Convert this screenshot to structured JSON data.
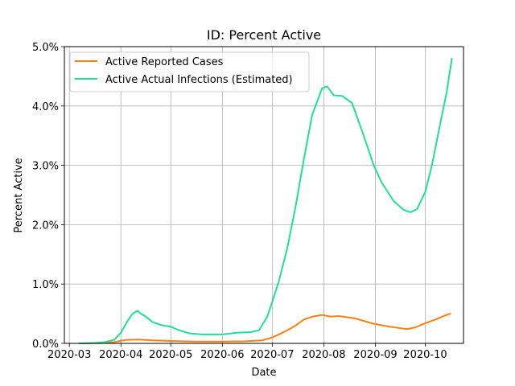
{
  "chart_data": {
    "type": "line",
    "title": "ID: Percent Active",
    "xlabel": "Date",
    "ylabel": "Percent Active",
    "x_ticks": [
      "2020-03",
      "2020-04",
      "2020-05",
      "2020-06",
      "2020-07",
      "2020-08",
      "2020-09",
      "2020-10"
    ],
    "y_ticks": [
      "0.0%",
      "1.0%",
      "2.0%",
      "3.0%",
      "4.0%",
      "5.0%"
    ],
    "xlim": [
      "2020-02-27",
      "2020-10-24"
    ],
    "ylim": [
      0,
      5.0
    ],
    "grid": true,
    "legend_position": "upper-left",
    "series": [
      {
        "name": "Active Reported Cases",
        "color": "#ff7f0e",
        "points": [
          [
            "2020-03-07",
            0.0
          ],
          [
            "2020-03-20",
            0.005
          ],
          [
            "2020-03-28",
            0.02
          ],
          [
            "2020-04-01",
            0.045
          ],
          [
            "2020-04-05",
            0.06
          ],
          [
            "2020-04-12",
            0.065
          ],
          [
            "2020-04-20",
            0.05
          ],
          [
            "2020-05-01",
            0.04
          ],
          [
            "2020-05-15",
            0.03
          ],
          [
            "2020-06-01",
            0.03
          ],
          [
            "2020-06-15",
            0.035
          ],
          [
            "2020-06-25",
            0.05
          ],
          [
            "2020-07-01",
            0.1
          ],
          [
            "2020-07-05",
            0.15
          ],
          [
            "2020-07-10",
            0.22
          ],
          [
            "2020-07-15",
            0.3
          ],
          [
            "2020-07-20",
            0.4
          ],
          [
            "2020-07-25",
            0.45
          ],
          [
            "2020-07-31",
            0.48
          ],
          [
            "2020-08-05",
            0.45
          ],
          [
            "2020-08-10",
            0.46
          ],
          [
            "2020-08-20",
            0.42
          ],
          [
            "2020-08-31",
            0.33
          ],
          [
            "2020-09-10",
            0.28
          ],
          [
            "2020-09-15",
            0.26
          ],
          [
            "2020-09-20",
            0.24
          ],
          [
            "2020-09-25",
            0.27
          ],
          [
            "2020-10-01",
            0.34
          ],
          [
            "2020-10-07",
            0.4
          ],
          [
            "2020-10-12",
            0.46
          ],
          [
            "2020-10-16",
            0.5
          ]
        ]
      },
      {
        "name": "Active Actual Infections (Estimated)",
        "color": "#1fe095",
        "points": [
          [
            "2020-03-07",
            0.0
          ],
          [
            "2020-03-15",
            0.005
          ],
          [
            "2020-03-22",
            0.02
          ],
          [
            "2020-03-28",
            0.06
          ],
          [
            "2020-04-01",
            0.18
          ],
          [
            "2020-04-05",
            0.38
          ],
          [
            "2020-04-08",
            0.5
          ],
          [
            "2020-04-11",
            0.55
          ],
          [
            "2020-04-13",
            0.5
          ],
          [
            "2020-04-16",
            0.45
          ],
          [
            "2020-04-20",
            0.36
          ],
          [
            "2020-04-25",
            0.31
          ],
          [
            "2020-05-01",
            0.28
          ],
          [
            "2020-05-06",
            0.22
          ],
          [
            "2020-05-12",
            0.17
          ],
          [
            "2020-05-20",
            0.15
          ],
          [
            "2020-06-01",
            0.15
          ],
          [
            "2020-06-10",
            0.18
          ],
          [
            "2020-06-18",
            0.19
          ],
          [
            "2020-06-23",
            0.22
          ],
          [
            "2020-06-28",
            0.45
          ],
          [
            "2020-07-01",
            0.7
          ],
          [
            "2020-07-05",
            1.05
          ],
          [
            "2020-07-10",
            1.6
          ],
          [
            "2020-07-15",
            2.3
          ],
          [
            "2020-07-20",
            3.1
          ],
          [
            "2020-07-25",
            3.85
          ],
          [
            "2020-07-31",
            4.3
          ],
          [
            "2020-08-03",
            4.33
          ],
          [
            "2020-08-07",
            4.18
          ],
          [
            "2020-08-12",
            4.17
          ],
          [
            "2020-08-18",
            4.05
          ],
          [
            "2020-08-25",
            3.5
          ],
          [
            "2020-08-31",
            3.0
          ],
          [
            "2020-09-05",
            2.7
          ],
          [
            "2020-09-12",
            2.4
          ],
          [
            "2020-09-18",
            2.25
          ],
          [
            "2020-09-22",
            2.21
          ],
          [
            "2020-09-26",
            2.26
          ],
          [
            "2020-10-01",
            2.55
          ],
          [
            "2020-10-05",
            3.0
          ],
          [
            "2020-10-10",
            3.7
          ],
          [
            "2020-10-14",
            4.25
          ],
          [
            "2020-10-17",
            4.8
          ]
        ]
      }
    ]
  }
}
